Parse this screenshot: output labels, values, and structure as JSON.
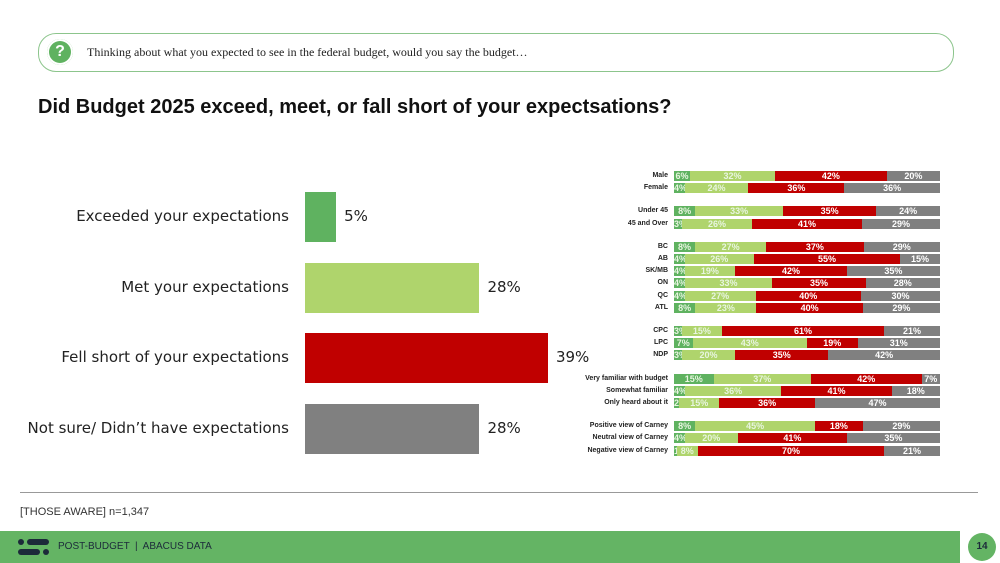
{
  "question": {
    "icon": "question-icon",
    "text": "Thinking about what you expected to see in the federal budget, would you say the budget…"
  },
  "title": "Did Budget 2025 exceed, meet, or fall short of your expectsations?",
  "note": "[THOSE AWARE] n=1,347",
  "footer": {
    "text": "POST-BUDGET  |  ABACUS DATA",
    "page": "14"
  },
  "colors": {
    "exceeded": "#5fb260",
    "met": "#afd46c",
    "short": "#c00000",
    "notsure": "#808080"
  },
  "chart_data": [
    {
      "type": "bar",
      "orientation": "horizontal",
      "categories": [
        "Exceeded your expectations",
        "Met your expectations",
        "Fell short of your expectations",
        "Not sure/ Didn’t have expectations"
      ],
      "values": [
        5,
        28,
        39,
        28
      ],
      "labels": [
        "5%",
        "28%",
        "39%",
        "28%"
      ]
    },
    {
      "type": "bar",
      "stacked": true,
      "orientation": "horizontal",
      "series_names": [
        "Exceeded",
        "Met",
        "Fell short",
        "Not sure"
      ],
      "groups": [
        [
          {
            "label": "Male",
            "values": [
              6,
              32,
              42,
              20
            ]
          },
          {
            "label": "Female",
            "values": [
              4,
              24,
              36,
              36
            ]
          }
        ],
        [
          {
            "label": "Under 45",
            "values": [
              8,
              33,
              35,
              24
            ]
          },
          {
            "label": "45 and Over",
            "values": [
              3,
              26,
              41,
              29
            ]
          }
        ],
        [
          {
            "label": "BC",
            "values": [
              8,
              27,
              37,
              29
            ]
          },
          {
            "label": "AB",
            "values": [
              4,
              26,
              55,
              15
            ]
          },
          {
            "label": "SK/MB",
            "values": [
              4,
              19,
              42,
              35
            ]
          },
          {
            "label": "ON",
            "values": [
              4,
              33,
              35,
              28
            ]
          },
          {
            "label": "QC",
            "values": [
              4,
              27,
              40,
              30
            ]
          },
          {
            "label": "ATL",
            "values": [
              8,
              23,
              40,
              29
            ]
          }
        ],
        [
          {
            "label": "CPC",
            "values": [
              3,
              15,
              61,
              21
            ]
          },
          {
            "label": "LPC",
            "values": [
              7,
              43,
              19,
              31
            ]
          },
          {
            "label": "NDP",
            "values": [
              3,
              20,
              35,
              42
            ]
          }
        ],
        [
          {
            "label": "Very familiar with budget",
            "values": [
              15,
              37,
              42,
              7
            ]
          },
          {
            "label": "Somewhat familiar",
            "values": [
              4,
              36,
              41,
              18
            ]
          },
          {
            "label": "Only heard about it",
            "values": [
              2,
              15,
              36,
              47
            ]
          }
        ],
        [
          {
            "label": "Positive view of Carney",
            "values": [
              8,
              45,
              18,
              29
            ]
          },
          {
            "label": "Neutral view of Carney",
            "values": [
              4,
              20,
              41,
              35
            ]
          },
          {
            "label": "Negative view of Carney",
            "values": [
              1,
              8,
              70,
              21
            ]
          }
        ]
      ]
    }
  ]
}
